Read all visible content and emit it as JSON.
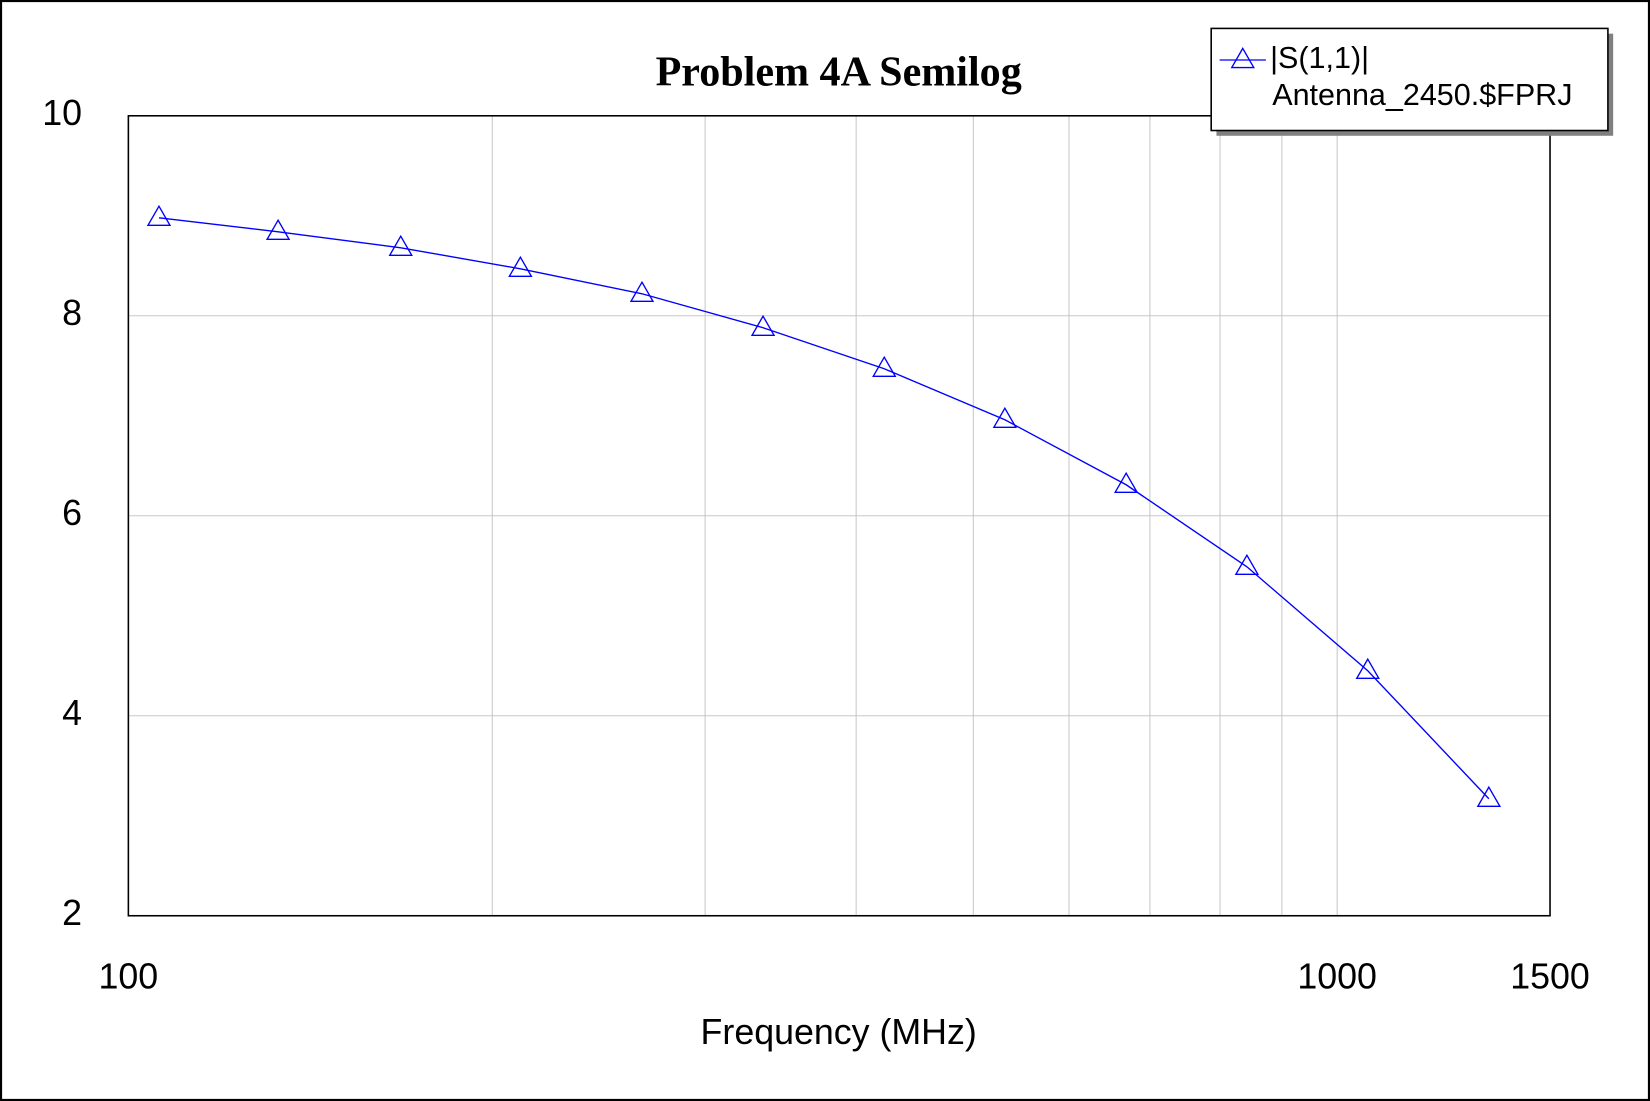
{
  "chart_data": {
    "type": "line",
    "title": "Problem 4A Semilog",
    "x_label": "Frequency (MHz)",
    "log_x": true,
    "grid": true,
    "legend": "top-right",
    "xlim": [
      100,
      1500
    ],
    "xticks": [
      100,
      1000,
      1500
    ],
    "xminor": [
      200,
      300,
      400,
      500,
      600,
      700,
      800,
      900
    ],
    "ylim": [
      2,
      10
    ],
    "yticks": [
      2,
      4,
      6,
      8,
      10
    ],
    "series": [
      {
        "name": "|S(1,1)|",
        "source": "Antenna_2450.$FPRJ",
        "color": "#0000ff",
        "marker": "triangle",
        "x": [
          106,
          133,
          168,
          211,
          266,
          335,
          422,
          531,
          669,
          842,
          1060,
          1335
        ],
        "values": [
          8.98,
          8.84,
          8.68,
          8.47,
          8.22,
          7.88,
          7.47,
          6.96,
          6.31,
          5.49,
          4.45,
          3.17
        ]
      }
    ]
  }
}
